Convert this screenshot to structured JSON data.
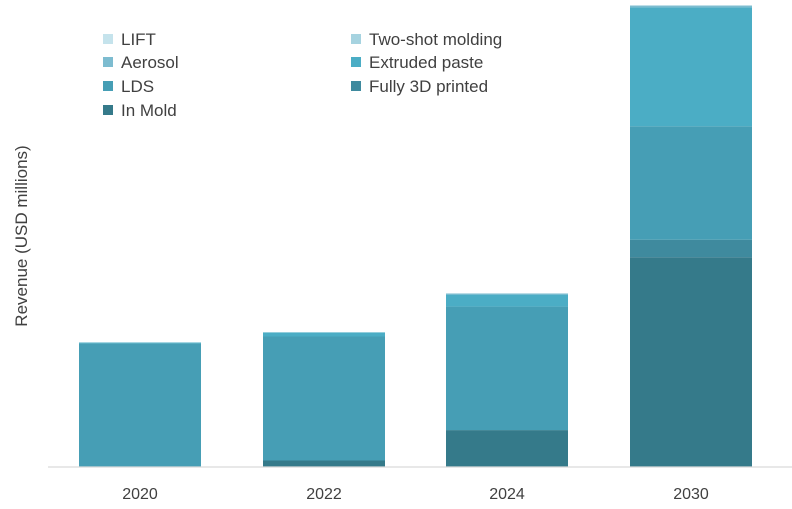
{
  "chart_data": {
    "type": "bar",
    "stacked": true,
    "title": "",
    "xlabel": "",
    "ylabel": "Revenue (USD millions)",
    "categories": [
      "2020",
      "2022",
      "2024",
      "2030"
    ],
    "ylim": [
      0,
      100
    ],
    "y_ticks_shown": false,
    "grid": false,
    "legend_position": "top-left",
    "series": [
      {
        "name": "In Mold",
        "color": "#357a8a",
        "values": [
          0,
          1.4,
          8.0,
          45.5
        ]
      },
      {
        "name": "Fully 3D printed",
        "color": "#3f8a9e",
        "values": [
          0,
          0,
          0,
          3.8
        ]
      },
      {
        "name": "LDS",
        "color": "#469eb5",
        "values": [
          26.8,
          26.9,
          26.8,
          24.6
        ]
      },
      {
        "name": "Extruded paste",
        "color": "#4badc5",
        "values": [
          0.2,
          0.9,
          2.6,
          25.8
        ]
      },
      {
        "name": "Aerosol",
        "color": "#7dbcd0",
        "values": [
          0,
          0,
          0.2,
          0.3
        ]
      },
      {
        "name": "Two-shot molding",
        "color": "#a6d3e0",
        "values": [
          0,
          0,
          0.1,
          0.1
        ]
      },
      {
        "name": "LIFT",
        "color": "#c5e3ec",
        "values": [
          0,
          0,
          0,
          0.1
        ]
      }
    ],
    "legend_order": [
      "LIFT",
      "Two-shot molding",
      "Aerosol",
      "Extruded paste",
      "LDS",
      "Fully 3D printed",
      "In Mold"
    ]
  }
}
